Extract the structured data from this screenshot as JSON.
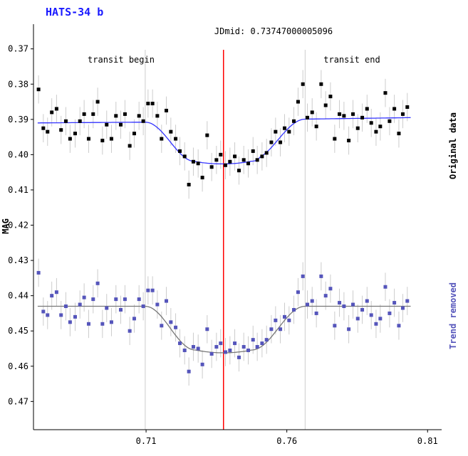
{
  "chart_data": {
    "type": "scatter",
    "title": "HATS-34 b",
    "xlabel": "",
    "ylabel": "MAG",
    "xlim": [
      0.67,
      0.815
    ],
    "ylim": [
      0.478,
      0.363
    ],
    "y_inverted": true,
    "xticks": [
      0.71,
      0.76,
      0.81
    ],
    "xtick_labels": [
      "0.71",
      "0.76",
      "0.81"
    ],
    "yticks": [
      0.37,
      0.38,
      0.39,
      0.4,
      0.41,
      0.42,
      0.43,
      0.44,
      0.45,
      0.46,
      0.47
    ],
    "ytick_labels": [
      "0.37",
      "0.38",
      "0.39",
      "0.40",
      "0.41",
      "0.42",
      "0.43",
      "0.44",
      "0.45",
      "0.46",
      "0.47"
    ],
    "grid": false,
    "annotations": {
      "transit_begin": {
        "x": 0.7097,
        "label": "transit begin"
      },
      "transit_end": {
        "x": 0.7665,
        "label": "transit end"
      },
      "jdmid": {
        "x": 0.7375,
        "label": "JDmid: 0.73747000005096"
      }
    },
    "right_labels": [
      "Original data",
      "Trend removed"
    ],
    "colors": {
      "original_points": "#000000",
      "original_model": "#3333ff",
      "detrended_points": "#5555bb",
      "detrended_model": "#777777",
      "jdmid_line": "#ff0000",
      "transit_lines": "#cccccc",
      "error_bars": "#cccccc",
      "title": "#1a1aff"
    },
    "model": {
      "ingress_start": 0.7097,
      "full_start": 0.7275,
      "full_end": 0.7475,
      "egress_end": 0.7665
    },
    "series": [
      {
        "name": "Original data",
        "errorbar": 0.004,
        "baseline": 0.391,
        "depth": 0.012,
        "points": [
          [
            0.6718,
            0.3815
          ],
          [
            0.6735,
            0.3925
          ],
          [
            0.675,
            0.3935
          ],
          [
            0.6765,
            0.388
          ],
          [
            0.6782,
            0.387
          ],
          [
            0.6798,
            0.393
          ],
          [
            0.6815,
            0.3905
          ],
          [
            0.683,
            0.3955
          ],
          [
            0.6848,
            0.394
          ],
          [
            0.6865,
            0.3905
          ],
          [
            0.688,
            0.3885
          ],
          [
            0.6896,
            0.3955
          ],
          [
            0.6912,
            0.3885
          ],
          [
            0.6928,
            0.385
          ],
          [
            0.6945,
            0.396
          ],
          [
            0.696,
            0.3915
          ],
          [
            0.6977,
            0.3955
          ],
          [
            0.6993,
            0.389
          ],
          [
            0.701,
            0.3915
          ],
          [
            0.7025,
            0.3885
          ],
          [
            0.7042,
            0.3975
          ],
          [
            0.7058,
            0.394
          ],
          [
            0.7075,
            0.389
          ],
          [
            0.709,
            0.3905
          ],
          [
            0.7107,
            0.3855
          ],
          [
            0.7123,
            0.3855
          ],
          [
            0.714,
            0.389
          ],
          [
            0.7155,
            0.3955
          ],
          [
            0.7172,
            0.3875
          ],
          [
            0.7188,
            0.3935
          ],
          [
            0.7205,
            0.3955
          ],
          [
            0.722,
            0.399
          ],
          [
            0.7237,
            0.4005
          ],
          [
            0.7252,
            0.4085
          ],
          [
            0.7268,
            0.402
          ],
          [
            0.7285,
            0.4025
          ],
          [
            0.73,
            0.4065
          ],
          [
            0.7317,
            0.3945
          ],
          [
            0.7333,
            0.4035
          ],
          [
            0.735,
            0.4015
          ],
          [
            0.7365,
            0.4
          ],
          [
            0.7382,
            0.403
          ],
          [
            0.7398,
            0.402
          ],
          [
            0.7415,
            0.4005
          ],
          [
            0.743,
            0.4045
          ],
          [
            0.7447,
            0.4015
          ],
          [
            0.7463,
            0.4025
          ],
          [
            0.748,
            0.399
          ],
          [
            0.7495,
            0.4015
          ],
          [
            0.7512,
            0.4005
          ],
          [
            0.7528,
            0.3995
          ],
          [
            0.7545,
            0.3965
          ],
          [
            0.756,
            0.3935
          ],
          [
            0.7577,
            0.3965
          ],
          [
            0.7592,
            0.3925
          ],
          [
            0.7608,
            0.3935
          ],
          [
            0.7625,
            0.3905
          ],
          [
            0.764,
            0.385
          ],
          [
            0.7657,
            0.38
          ],
          [
            0.7673,
            0.3895
          ],
          [
            0.769,
            0.388
          ],
          [
            0.7705,
            0.392
          ],
          [
            0.7722,
            0.38
          ],
          [
            0.7738,
            0.386
          ],
          [
            0.7755,
            0.3835
          ],
          [
            0.777,
            0.3955
          ],
          [
            0.7787,
            0.3885
          ],
          [
            0.7803,
            0.389
          ],
          [
            0.782,
            0.396
          ],
          [
            0.7835,
            0.3885
          ],
          [
            0.7852,
            0.3925
          ],
          [
            0.7868,
            0.3895
          ],
          [
            0.7885,
            0.387
          ],
          [
            0.79,
            0.391
          ],
          [
            0.7917,
            0.3935
          ],
          [
            0.7932,
            0.392
          ],
          [
            0.795,
            0.3825
          ],
          [
            0.7965,
            0.3905
          ],
          [
            0.7982,
            0.387
          ],
          [
            0.7998,
            0.394
          ],
          [
            0.8012,
            0.3885
          ],
          [
            0.8028,
            0.3865
          ]
        ]
      },
      {
        "name": "Trend removed",
        "errorbar": 0.004,
        "baseline": 0.443,
        "depth": 0.0132,
        "points": [
          [
            0.6718,
            0.4335
          ],
          [
            0.6735,
            0.4445
          ],
          [
            0.675,
            0.4455
          ],
          [
            0.6765,
            0.44
          ],
          [
            0.6782,
            0.439
          ],
          [
            0.6798,
            0.4455
          ],
          [
            0.6815,
            0.443
          ],
          [
            0.683,
            0.4475
          ],
          [
            0.6848,
            0.446
          ],
          [
            0.6865,
            0.4425
          ],
          [
            0.688,
            0.4405
          ],
          [
            0.6896,
            0.448
          ],
          [
            0.6912,
            0.441
          ],
          [
            0.6928,
            0.4365
          ],
          [
            0.6945,
            0.448
          ],
          [
            0.696,
            0.4435
          ],
          [
            0.6977,
            0.4475
          ],
          [
            0.6993,
            0.441
          ],
          [
            0.701,
            0.444
          ],
          [
            0.7025,
            0.441
          ],
          [
            0.7042,
            0.45
          ],
          [
            0.7058,
            0.4465
          ],
          [
            0.7075,
            0.441
          ],
          [
            0.709,
            0.443
          ],
          [
            0.7107,
            0.4385
          ],
          [
            0.7123,
            0.4385
          ],
          [
            0.714,
            0.4425
          ],
          [
            0.7155,
            0.4485
          ],
          [
            0.7172,
            0.4415
          ],
          [
            0.7188,
            0.4475
          ],
          [
            0.7205,
            0.449
          ],
          [
            0.722,
            0.4535
          ],
          [
            0.7237,
            0.4555
          ],
          [
            0.7252,
            0.4615
          ],
          [
            0.7268,
            0.4545
          ],
          [
            0.7285,
            0.455
          ],
          [
            0.73,
            0.4595
          ],
          [
            0.7317,
            0.4495
          ],
          [
            0.7333,
            0.4565
          ],
          [
            0.735,
            0.4545
          ],
          [
            0.7365,
            0.4535
          ],
          [
            0.7382,
            0.456
          ],
          [
            0.7398,
            0.4555
          ],
          [
            0.7415,
            0.4535
          ],
          [
            0.743,
            0.4575
          ],
          [
            0.7447,
            0.4545
          ],
          [
            0.7463,
            0.4555
          ],
          [
            0.748,
            0.4525
          ],
          [
            0.7495,
            0.4545
          ],
          [
            0.7512,
            0.4535
          ],
          [
            0.7528,
            0.4525
          ],
          [
            0.7545,
            0.4495
          ],
          [
            0.756,
            0.447
          ],
          [
            0.7577,
            0.4495
          ],
          [
            0.7592,
            0.446
          ],
          [
            0.7608,
            0.447
          ],
          [
            0.7625,
            0.444
          ],
          [
            0.764,
            0.439
          ],
          [
            0.7657,
            0.4345
          ],
          [
            0.7673,
            0.4425
          ],
          [
            0.769,
            0.4415
          ],
          [
            0.7705,
            0.445
          ],
          [
            0.7722,
            0.4345
          ],
          [
            0.7738,
            0.44
          ],
          [
            0.7755,
            0.438
          ],
          [
            0.777,
            0.4485
          ],
          [
            0.7787,
            0.442
          ],
          [
            0.7803,
            0.443
          ],
          [
            0.782,
            0.4495
          ],
          [
            0.7835,
            0.4425
          ],
          [
            0.7852,
            0.4465
          ],
          [
            0.7868,
            0.444
          ],
          [
            0.7885,
            0.4415
          ],
          [
            0.79,
            0.4455
          ],
          [
            0.7917,
            0.448
          ],
          [
            0.7932,
            0.4465
          ],
          [
            0.795,
            0.4375
          ],
          [
            0.7965,
            0.445
          ],
          [
            0.7982,
            0.442
          ],
          [
            0.7998,
            0.4485
          ],
          [
            0.8012,
            0.4435
          ],
          [
            0.8028,
            0.4415
          ]
        ]
      }
    ]
  }
}
